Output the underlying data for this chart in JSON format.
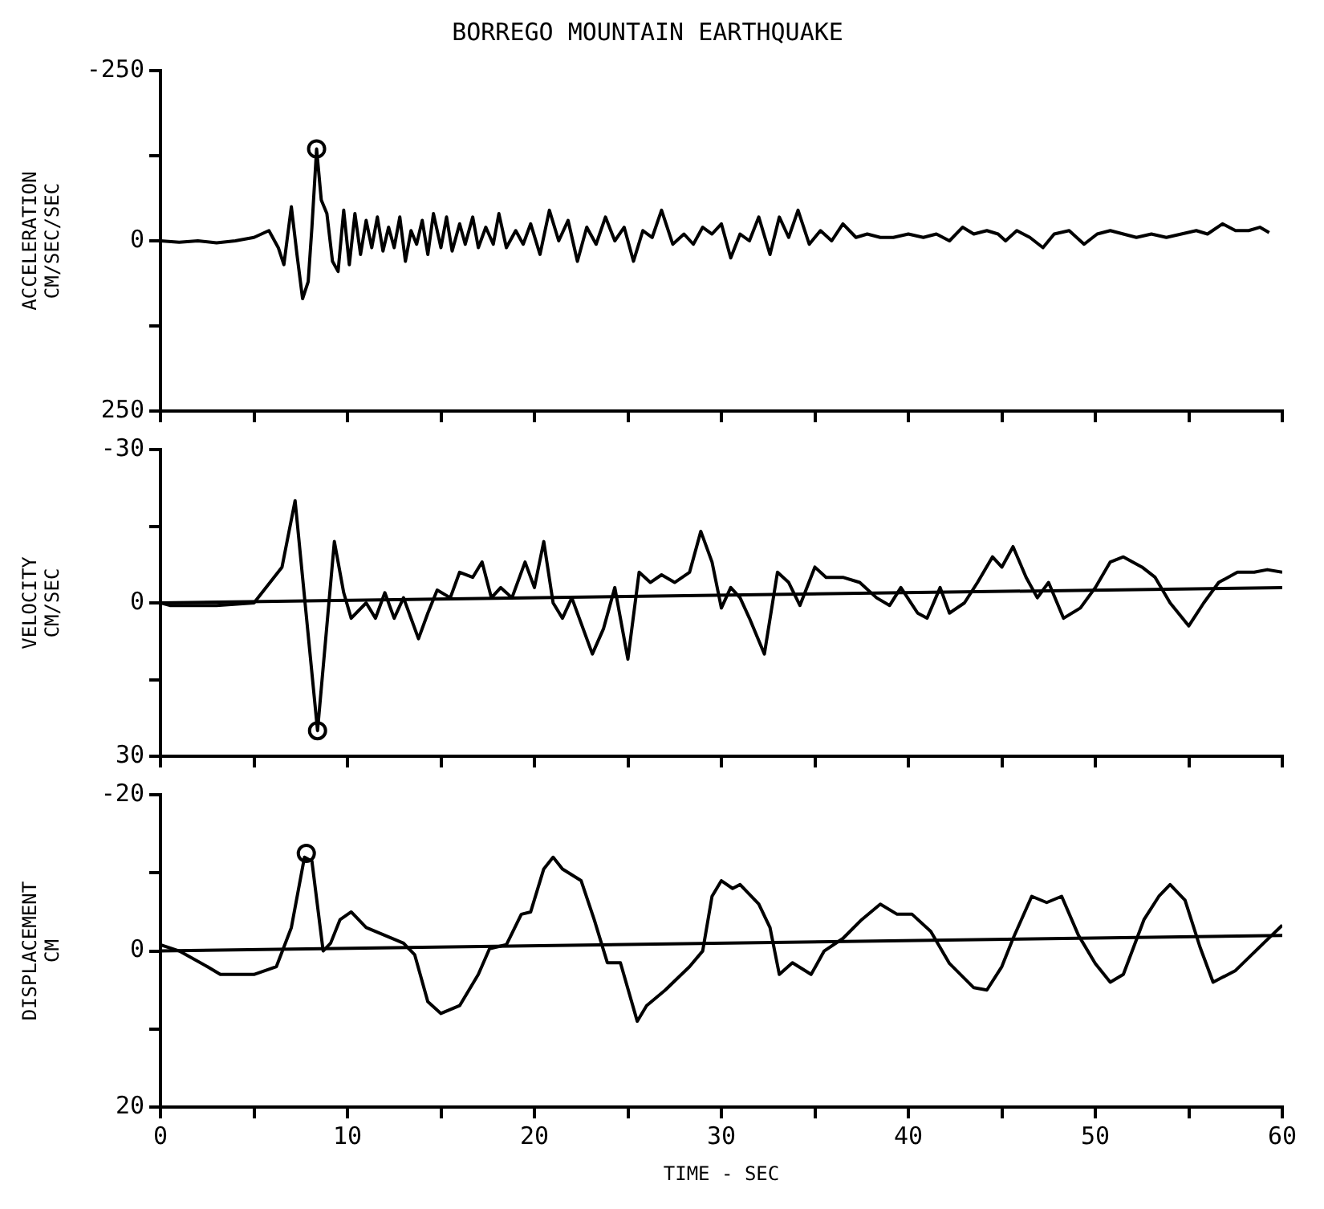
{
  "chart_data": [
    {
      "type": "line",
      "title": "BORREGO MOUNTAIN EARTHQUAKE",
      "ylabel": "ACCELERATION\nCM/SEC/SEC",
      "xlim": [
        0,
        60
      ],
      "ylim": [
        250,
        -250
      ],
      "yticks": [
        -250,
        {
          "value": -125,
          "label": null
        },
        0,
        {
          "value": 125,
          "label": null
        },
        250
      ],
      "xticks": [
        {
          "value": 0,
          "label": null
        },
        {
          "value": 5,
          "label": null
        },
        {
          "value": 10,
          "label": null
        },
        {
          "value": 15,
          "label": null
        },
        {
          "value": 20,
          "label": null
        },
        {
          "value": 25,
          "label": null
        },
        {
          "value": 30,
          "label": null
        },
        {
          "value": 35,
          "label": null
        },
        {
          "value": 40,
          "label": null
        },
        {
          "value": 45,
          "label": null
        },
        {
          "value": 50,
          "label": null
        },
        {
          "value": 55,
          "label": null
        },
        {
          "value": 60,
          "label": null
        }
      ],
      "tick_labels": "y",
      "grid": false,
      "legend": false,
      "series": [
        {
          "color": "#000000",
          "marker": "none",
          "x": [
            0,
            1,
            2,
            3,
            4,
            5,
            5.8,
            6.3,
            6.6,
            7.0,
            7.3,
            7.6,
            7.9,
            8.1,
            8.35,
            8.6,
            8.9,
            9.2,
            9.5,
            9.8,
            10.1,
            10.4,
            10.7,
            11.0,
            11.3,
            11.6,
            11.9,
            12.2,
            12.5,
            12.8,
            13.1,
            13.4,
            13.7,
            14.0,
            14.3,
            14.6,
            15.0,
            15.3,
            15.6,
            16.0,
            16.3,
            16.7,
            17.0,
            17.4,
            17.8,
            18.1,
            18.5,
            19.0,
            19.4,
            19.8,
            20.3,
            20.8,
            21.3,
            21.8,
            22.3,
            22.8,
            23.3,
            23.8,
            24.3,
            24.8,
            25.3,
            25.8,
            26.3,
            26.8,
            27.4,
            28.0,
            28.5,
            29.0,
            29.5,
            30.0,
            30.5,
            31.0,
            31.5,
            32.0,
            32.6,
            33.1,
            33.6,
            34.1,
            34.7,
            35.3,
            35.9,
            36.5,
            37.2,
            37.8,
            38.5,
            39.2,
            40.0,
            40.8,
            41.5,
            42.2,
            42.9,
            43.5,
            44.2,
            44.8,
            45.2,
            45.8,
            46.5,
            47.2,
            47.8,
            48.6,
            49.4,
            50.1,
            50.8,
            51.5,
            52.2,
            53.0,
            53.8,
            54.6,
            55.4,
            56.0,
            56.8,
            57.5,
            58.2,
            58.8,
            59.3
          ],
          "values": [
            0,
            2,
            0,
            3,
            0,
            -5,
            -15,
            10,
            35,
            -50,
            20,
            85,
            60,
            -20,
            -135,
            -60,
            -40,
            30,
            45,
            -45,
            35,
            -40,
            20,
            -30,
            10,
            -35,
            15,
            -20,
            10,
            -35,
            30,
            -15,
            5,
            -30,
            20,
            -40,
            10,
            -35,
            15,
            -25,
            5,
            -35,
            10,
            -20,
            5,
            -40,
            10,
            -15,
            5,
            -25,
            20,
            -45,
            0,
            -30,
            30,
            -20,
            5,
            -35,
            0,
            -20,
            30,
            -15,
            -5,
            -45,
            5,
            -10,
            5,
            -20,
            -10,
            -25,
            25,
            -10,
            0,
            -35,
            20,
            -35,
            -5,
            -45,
            5,
            -15,
            0,
            -25,
            -5,
            -10,
            -5,
            -5,
            -10,
            -5,
            -10,
            0,
            -20,
            -10,
            -15,
            -10,
            0,
            -15,
            -5,
            10,
            -10,
            -15,
            5,
            -10,
            -15,
            -10,
            -5,
            -10,
            -5,
            -10,
            -15,
            -10,
            -25,
            -15,
            -15,
            -20,
            -12
          ]
        },
        {
          "type": "scatter",
          "color": "#000000",
          "marker": "circle",
          "x": [
            8.35
          ],
          "values": [
            -135
          ]
        }
      ]
    },
    {
      "type": "line",
      "ylabel": "VELOCITY\nCM/SEC",
      "xlim": [
        0,
        60
      ],
      "ylim": [
        30,
        -30
      ],
      "yticks": [
        -30,
        {
          "value": -15,
          "label": null
        },
        0,
        {
          "value": 15,
          "label": null
        },
        30
      ],
      "xticks": [
        {
          "value": 0,
          "label": null
        },
        {
          "value": 5,
          "label": null
        },
        {
          "value": 10,
          "label": null
        },
        {
          "value": 15,
          "label": null
        },
        {
          "value": 20,
          "label": null
        },
        {
          "value": 25,
          "label": null
        },
        {
          "value": 30,
          "label": null
        },
        {
          "value": 35,
          "label": null
        },
        {
          "value": 40,
          "label": null
        },
        {
          "value": 45,
          "label": null
        },
        {
          "value": 50,
          "label": null
        },
        {
          "value": 55,
          "label": null
        },
        {
          "value": 60,
          "label": null
        }
      ],
      "tick_labels": "y",
      "grid": false,
      "legend": false,
      "series": [
        {
          "color": "#000000",
          "marker": "none",
          "x": [
            0,
            0.5,
            3,
            5,
            6.5,
            7.2,
            8.4,
            9.3,
            9.8,
            10.2,
            11,
            11.5,
            12,
            12.5,
            13,
            13.8,
            14.3,
            14.8,
            15.5,
            16,
            16.7,
            17.2,
            17.7,
            18.2,
            18.8,
            19.5,
            20,
            20.5,
            21,
            21.5,
            22,
            23.1,
            23.7,
            24.3,
            25,
            25.6,
            26.2,
            26.8,
            27.5,
            28.3,
            28.9,
            29.5,
            30,
            30.5,
            31,
            31.5,
            32.3,
            33,
            33.6,
            34.2,
            35,
            35.6,
            36.5,
            37.4,
            38.3,
            39,
            39.6,
            40.5,
            41,
            41.7,
            42.2,
            43,
            43.7,
            44.5,
            45,
            45.6,
            46.3,
            46.9,
            47.5,
            48.3,
            49.2,
            50,
            50.8,
            51.5,
            52.5,
            53.2,
            54,
            55,
            55.8,
            56.6,
            57.6,
            58.5,
            59.2,
            60
          ],
          "values": [
            0,
            0.5,
            0.5,
            0,
            -7,
            -20,
            25,
            -12,
            -2,
            3,
            0,
            3,
            -2,
            3,
            -1,
            7,
            2,
            -2.5,
            -1,
            -6,
            -5,
            -8,
            -1,
            -3,
            -1,
            -8,
            -3,
            -12,
            0,
            3,
            -1,
            10,
            5,
            -3,
            11,
            -6,
            -4,
            -5.5,
            -4,
            -6,
            -14,
            -8,
            1,
            -3,
            -1,
            3,
            10,
            -6,
            -4,
            0.5,
            -7,
            -5,
            -5,
            -4,
            -1,
            0.5,
            -3,
            2,
            3,
            -3,
            2,
            0,
            -4,
            -9,
            -7,
            -11,
            -5,
            -1,
            -4,
            3,
            1,
            -3,
            -8,
            -9,
            -7,
            -5,
            0,
            4.5,
            0,
            -4,
            -6,
            -6,
            -6.5,
            -6
          ]
        },
        {
          "color": "#000000",
          "marker": "none",
          "x": [
            0,
            60
          ],
          "values": [
            0,
            -3
          ]
        },
        {
          "type": "scatter",
          "color": "#000000",
          "marker": "circle",
          "x": [
            8.4
          ],
          "values": [
            25
          ]
        }
      ]
    },
    {
      "type": "line",
      "ylabel": "DISPLACEMENT\nCM",
      "xlabel": "TIME - SEC",
      "xlim": [
        0,
        60
      ],
      "ylim": [
        20,
        -20
      ],
      "yticks": [
        -20,
        {
          "value": -10,
          "label": null
        },
        0,
        {
          "value": 10,
          "label": null
        },
        20
      ],
      "xticks": [
        0,
        {
          "value": 5,
          "label": null
        },
        10,
        {
          "value": 15,
          "label": null
        },
        20,
        {
          "value": 25,
          "label": null
        },
        30,
        {
          "value": 35,
          "label": null
        },
        40,
        {
          "value": 45,
          "label": null
        },
        50,
        {
          "value": 55,
          "label": null
        },
        60
      ],
      "grid": false,
      "legend": false,
      "series": [
        {
          "color": "#000000",
          "marker": "none",
          "x": [
            0,
            1,
            2.5,
            3.2,
            5,
            6.2,
            7,
            7.7,
            8.1,
            8.7,
            9.1,
            9.6,
            10.2,
            11,
            12,
            13,
            13.6,
            14.3,
            15,
            16,
            17,
            17.6,
            18.5,
            19.3,
            19.8,
            20.5,
            21,
            21.5,
            22.5,
            23.2,
            23.9,
            24.6,
            25.5,
            26,
            27,
            28.3,
            29,
            29.5,
            30,
            30.6,
            31,
            32,
            32.6,
            33.1,
            33.8,
            34.8,
            35.5,
            36.5,
            37.5,
            38.5,
            39.4,
            40.2,
            41.2,
            42.2,
            43.5,
            44.2,
            45,
            45.6,
            46.6,
            47.4,
            48.2,
            49.1,
            50,
            50.8,
            51.5,
            52.6,
            53.4,
            54,
            54.8,
            55.6,
            56.3,
            57.5,
            59,
            60
          ],
          "values": [
            -0.8,
            0,
            2,
            3,
            3,
            2,
            -3,
            -12,
            -11.5,
            0,
            -1,
            -4,
            -5,
            -3,
            -2,
            -1,
            0.5,
            6.5,
            8,
            7,
            3,
            -0.3,
            -0.8,
            -4.7,
            -5,
            -10.5,
            -12,
            -10.5,
            -9,
            -4,
            1.5,
            1.5,
            9,
            7,
            5,
            2,
            0,
            -7,
            -9,
            -8,
            -8.5,
            -6,
            -3,
            3,
            1.5,
            3,
            0,
            -1.6,
            -4,
            -6,
            -4.7,
            -4.7,
            -2.5,
            1.6,
            4.7,
            5,
            2,
            -1.6,
            -7,
            -6.2,
            -7,
            -2,
            1.6,
            4,
            3,
            -4,
            -7,
            -8.5,
            -6.5,
            -0.5,
            4,
            2.5,
            -1,
            -3.3
          ]
        },
        {
          "color": "#000000",
          "marker": "none",
          "x": [
            0,
            60
          ],
          "values": [
            0,
            -2
          ]
        },
        {
          "type": "scatter",
          "color": "#000000",
          "marker": "circle",
          "x": [
            7.8
          ],
          "values": [
            -12.5
          ]
        }
      ]
    }
  ]
}
